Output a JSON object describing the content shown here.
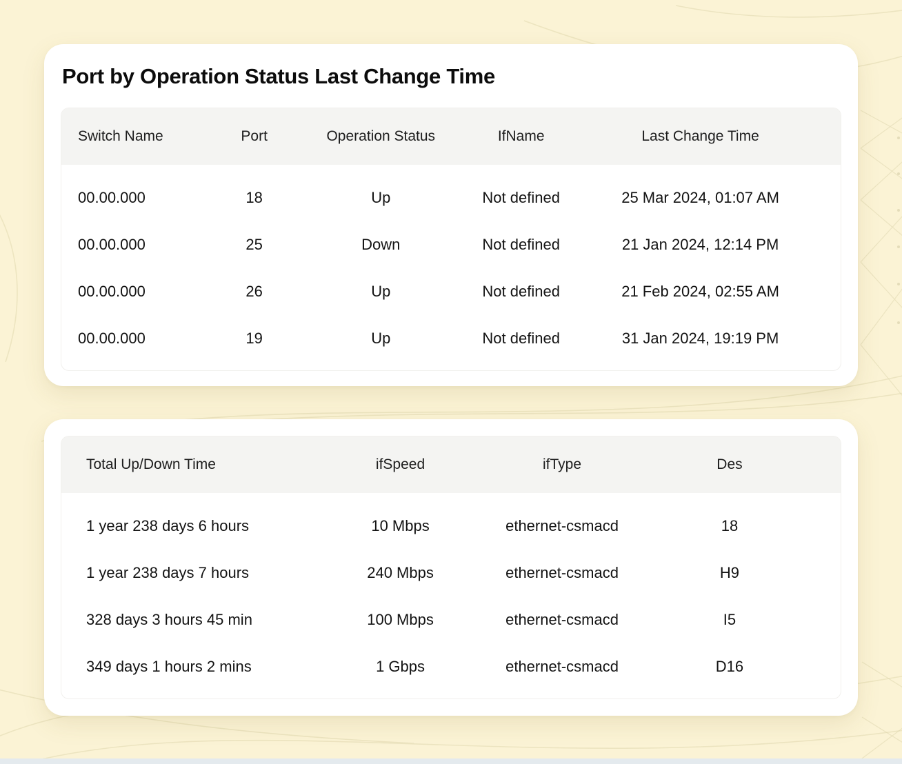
{
  "page": {
    "background_color": "#FBF3D5",
    "card_color": "#FFFFFF",
    "table_header_color": "#F4F4F2",
    "text_color": "#141414",
    "bottom_edge_color": "#E4EAEE"
  },
  "tables": [
    {
      "title": "Port by Operation Status Last Change Time",
      "columns": [
        "Switch Name",
        "Port",
        "Operation Status",
        "IfName",
        "Last Change Time"
      ],
      "rows": [
        [
          "00.00.000",
          "18",
          "Up",
          "Not defined",
          "25 Mar 2024, 01:07 AM"
        ],
        [
          "00.00.000",
          "25",
          "Down",
          "Not defined",
          "21 Jan 2024, 12:14 PM"
        ],
        [
          "00.00.000",
          "26",
          "Up",
          "Not defined",
          "21 Feb 2024, 02:55 AM"
        ],
        [
          "00.00.000",
          "19",
          "Up",
          "Not defined",
          "31 Jan 2024, 19:19 PM"
        ]
      ]
    },
    {
      "columns": [
        "Total Up/Down Time",
        "ifSpeed",
        "ifType",
        "Des"
      ],
      "rows": [
        [
          "1 year 238 days 6 hours",
          "10 Mbps",
          "ethernet-csmacd",
          "18"
        ],
        [
          "1 year 238 days 7 hours",
          "240 Mbps",
          "ethernet-csmacd",
          "H9"
        ],
        [
          "328 days 3 hours 45 min",
          "100 Mbps",
          "ethernet-csmacd",
          "I5"
        ],
        [
          "349 days 1 hours 2 mins",
          "1 Gbps",
          "ethernet-csmacd",
          "D16"
        ]
      ]
    }
  ]
}
